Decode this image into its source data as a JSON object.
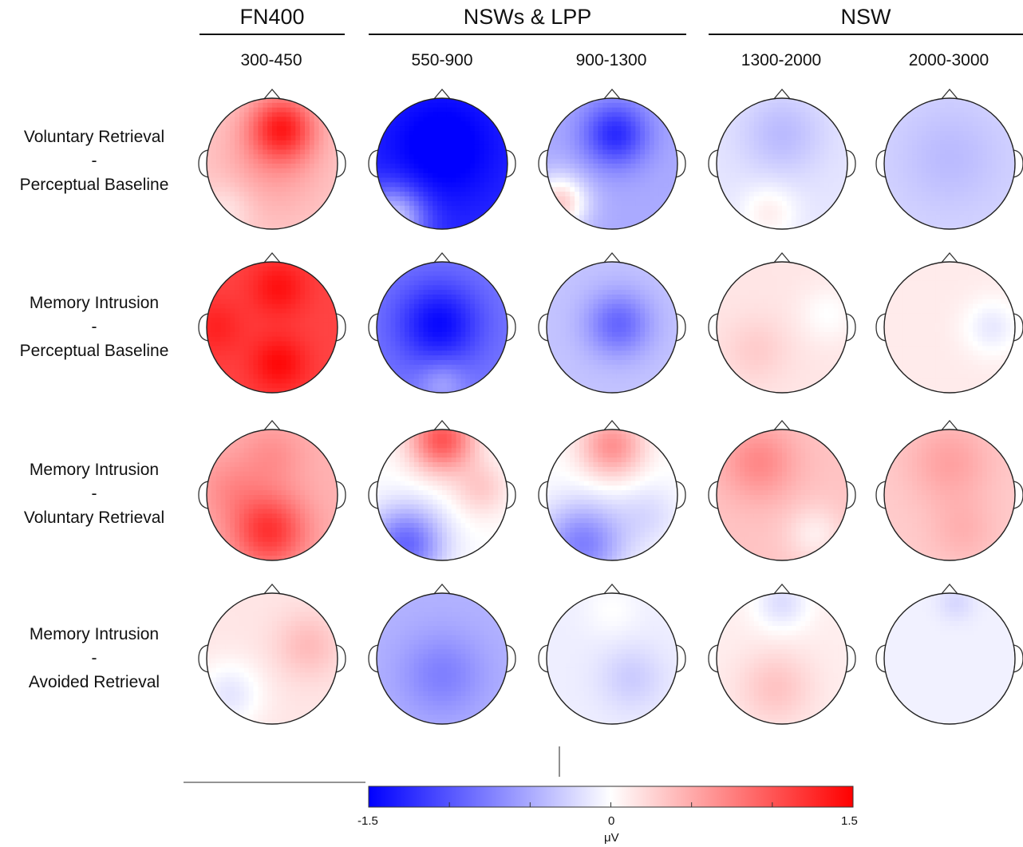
{
  "groups": [
    {
      "title": "FN400"
    },
    {
      "title": "NSWs & LPP"
    },
    {
      "title": "NSW"
    }
  ],
  "windows": [
    "300-450",
    "550-900",
    "900-1300",
    "1300-2000",
    "2000-3000"
  ],
  "rows": [
    {
      "top": "Voluntary Retrieval",
      "dash": "-",
      "bottom": "Perceptual Baseline"
    },
    {
      "top": "Memory Intrusion",
      "dash": "-",
      "bottom": "Perceptual Baseline"
    },
    {
      "top": "Memory Intrusion",
      "dash": "-",
      "bottom": "Voluntary Retrieval"
    },
    {
      "top": "Memory Intrusion",
      "dash": "-",
      "bottom": "Avoided Retrieval"
    }
  ],
  "colorbar": {
    "min_label": "-1.5",
    "mid_label": "0",
    "max_label": "1.5",
    "unit": "μV",
    "min": -1.5,
    "max": 1.5,
    "colors": {
      "negative": "#0000ff",
      "zero": "#ffffff",
      "positive": "#ff0000"
    }
  },
  "maps": [
    [
      {
        "base": 0.3,
        "blobs": [
          [
            0.15,
            -0.55,
            0.9,
            0.35
          ],
          [
            0.0,
            0.0,
            0.25,
            0.6
          ],
          [
            -0.7,
            0.7,
            -0.2,
            0.3
          ]
        ]
      },
      {
        "base": -1.25,
        "blobs": [
          [
            0.0,
            -0.25,
            -0.35,
            0.6
          ],
          [
            -0.75,
            0.85,
            1.0,
            0.35
          ]
        ]
      },
      {
        "base": -0.5,
        "blobs": [
          [
            0.05,
            -0.45,
            -0.75,
            0.35
          ],
          [
            -0.8,
            0.6,
            0.8,
            0.3
          ]
        ]
      },
      {
        "base": -0.15,
        "blobs": [
          [
            0.0,
            -0.45,
            -0.25,
            0.45
          ],
          [
            -0.2,
            0.75,
            0.25,
            0.3
          ]
        ]
      },
      {
        "base": -0.25,
        "blobs": [
          [
            0.0,
            -0.1,
            -0.15,
            0.55
          ]
        ]
      }
    ],
    [
      {
        "base": 1.1,
        "blobs": [
          [
            0.1,
            -0.6,
            0.3,
            0.3
          ],
          [
            0.1,
            0.55,
            0.35,
            0.3
          ],
          [
            -0.85,
            0.0,
            0.2,
            0.3
          ]
        ]
      },
      {
        "base": -0.8,
        "blobs": [
          [
            -0.05,
            -0.05,
            -0.65,
            0.45
          ],
          [
            0.0,
            0.85,
            0.3,
            0.25
          ]
        ]
      },
      {
        "base": -0.35,
        "blobs": [
          [
            0.1,
            -0.05,
            -0.55,
            0.35
          ]
        ]
      },
      {
        "base": 0.15,
        "blobs": [
          [
            -0.4,
            0.35,
            0.15,
            0.35
          ],
          [
            0.7,
            -0.2,
            -0.15,
            0.3
          ]
        ]
      },
      {
        "base": 0.12,
        "blobs": [
          [
            0.65,
            0.0,
            -0.25,
            0.3
          ]
        ]
      }
    ],
    [
      {
        "base": 0.45,
        "blobs": [
          [
            -0.05,
            0.55,
            0.75,
            0.4
          ],
          [
            0.0,
            -0.6,
            0.2,
            0.35
          ],
          [
            -0.65,
            -0.1,
            0.2,
            0.35
          ]
        ]
      },
      {
        "base": 0.0,
        "blobs": [
          [
            0.0,
            -0.85,
            1.0,
            0.35
          ],
          [
            -0.55,
            0.75,
            -0.9,
            0.4
          ],
          [
            0.6,
            -0.1,
            0.3,
            0.3
          ]
        ]
      },
      {
        "base": 0.0,
        "blobs": [
          [
            0.0,
            -0.75,
            0.65,
            0.35
          ],
          [
            -0.45,
            0.75,
            -0.75,
            0.45
          ],
          [
            0.55,
            0.3,
            -0.2,
            0.35
          ]
        ]
      },
      {
        "base": 0.35,
        "blobs": [
          [
            -0.35,
            -0.5,
            0.35,
            0.4
          ],
          [
            0.5,
            0.6,
            -0.25,
            0.3
          ]
        ]
      },
      {
        "base": 0.3,
        "blobs": [
          [
            0.0,
            -0.5,
            0.25,
            0.45
          ],
          [
            0.2,
            0.55,
            0.15,
            0.35
          ]
        ]
      }
    ],
    [
      {
        "base": 0.15,
        "blobs": [
          [
            0.55,
            -0.2,
            0.25,
            0.35
          ],
          [
            -0.65,
            0.55,
            -0.3,
            0.35
          ]
        ]
      },
      {
        "base": -0.45,
        "blobs": [
          [
            0.0,
            0.25,
            -0.3,
            0.45
          ]
        ]
      },
      {
        "base": -0.1,
        "blobs": [
          [
            0.3,
            0.3,
            -0.2,
            0.35
          ],
          [
            0.0,
            -0.75,
            0.1,
            0.3
          ]
        ]
      },
      {
        "base": 0.1,
        "blobs": [
          [
            0.0,
            -0.85,
            -0.3,
            0.3
          ],
          [
            -0.1,
            0.45,
            0.25,
            0.4
          ]
        ]
      },
      {
        "base": -0.08,
        "blobs": [
          [
            0.1,
            -0.85,
            -0.15,
            0.2
          ]
        ]
      }
    ]
  ]
}
